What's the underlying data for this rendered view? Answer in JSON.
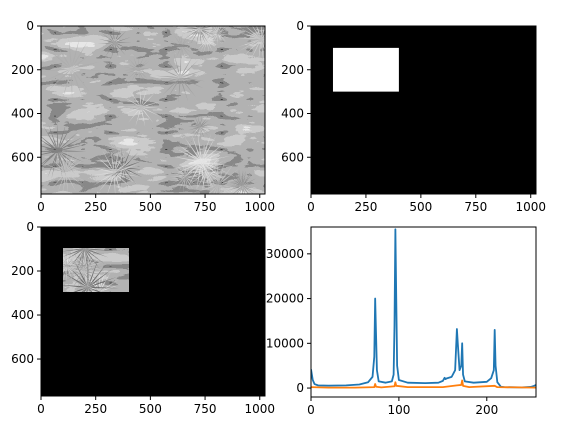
{
  "chart_data": [
    {
      "type": "heatmap",
      "panel": "top-left",
      "content": "grayscale image of spiky palm leaves",
      "xlim": [
        0,
        1024
      ],
      "ylim": [
        768,
        0
      ],
      "x_ticks": [
        0,
        250,
        500,
        750,
        1000
      ],
      "y_ticks": [
        0,
        200,
        400,
        600
      ],
      "x_tick_labels": [
        "0",
        "250",
        "500",
        "750",
        "1000"
      ],
      "y_tick_labels": [
        "0",
        "200",
        "400",
        "600"
      ]
    },
    {
      "type": "heatmap",
      "panel": "top-right",
      "content": "black mask with white rectangle",
      "xlim": [
        0,
        1024
      ],
      "ylim": [
        768,
        0
      ],
      "mask_rect": {
        "x0": 100,
        "x1": 400,
        "y0": 100,
        "y1": 300
      },
      "colors": {
        "background": "#000000",
        "mask": "#ffffff"
      },
      "x_ticks": [
        0,
        250,
        500,
        750,
        1000
      ],
      "y_ticks": [
        0,
        200,
        400,
        600
      ],
      "x_tick_labels": [
        "0",
        "250",
        "500",
        "750",
        "1000"
      ],
      "y_tick_labels": [
        "0",
        "200",
        "400",
        "600"
      ]
    },
    {
      "type": "heatmap",
      "panel": "bottom-left",
      "content": "masked image: only the rectangle region of the palm image is visible",
      "xlim": [
        0,
        1024
      ],
      "ylim": [
        768,
        0
      ],
      "mask_rect": {
        "x0": 100,
        "x1": 400,
        "y0": 100,
        "y1": 300
      },
      "x_ticks": [
        0,
        250,
        500,
        750,
        1000
      ],
      "y_ticks": [
        0,
        200,
        400,
        600
      ],
      "x_tick_labels": [
        "0",
        "250",
        "500",
        "750",
        "1000"
      ],
      "y_tick_labels": [
        "0",
        "200",
        "400",
        "600"
      ]
    },
    {
      "type": "line",
      "panel": "bottom-right",
      "xlim": [
        0,
        256
      ],
      "ylim": [
        -2000,
        36000
      ],
      "x_ticks": [
        0,
        100,
        200
      ],
      "y_ticks": [
        0,
        10000,
        20000,
        30000
      ],
      "x_tick_labels": [
        "0",
        "100",
        "200"
      ],
      "y_tick_labels": [
        "0",
        "10000",
        "20000",
        "30000"
      ],
      "grid": false,
      "series": [
        {
          "color": "#1f77b4",
          "points": [
            [
              0,
              4200
            ],
            [
              2,
              1800
            ],
            [
              4,
              900
            ],
            [
              8,
              600
            ],
            [
              20,
              550
            ],
            [
              40,
              600
            ],
            [
              55,
              800
            ],
            [
              65,
              1300
            ],
            [
              70,
              2500
            ],
            [
              72,
              7000
            ],
            [
              73,
              20000
            ],
            [
              74,
              12000
            ],
            [
              75,
              4000
            ],
            [
              77,
              1500
            ],
            [
              85,
              1200
            ],
            [
              92,
              1500
            ],
            [
              94,
              3000
            ],
            [
              95,
              14000
            ],
            [
              96,
              35500
            ],
            [
              97,
              20000
            ],
            [
              98,
              5000
            ],
            [
              100,
              1800
            ],
            [
              110,
              1200
            ],
            [
              130,
              1100
            ],
            [
              145,
              1200
            ],
            [
              150,
              1600
            ],
            [
              152,
              2300
            ],
            [
              153,
              2000
            ],
            [
              155,
              2200
            ],
            [
              160,
              2500
            ],
            [
              164,
              4000
            ],
            [
              166,
              13200
            ],
            [
              167,
              10000
            ],
            [
              169,
              4000
            ],
            [
              171,
              5000
            ],
            [
              172,
              10000
            ],
            [
              173,
              3000
            ],
            [
              175,
              1500
            ],
            [
              185,
              1200
            ],
            [
              200,
              1400
            ],
            [
              205,
              2200
            ],
            [
              208,
              4000
            ],
            [
              209,
              13000
            ],
            [
              210,
              5000
            ],
            [
              212,
              1300
            ],
            [
              216,
              300
            ],
            [
              220,
              200
            ],
            [
              240,
              150
            ],
            [
              250,
              250
            ],
            [
              254,
              500
            ],
            [
              256,
              700
            ]
          ]
        },
        {
          "color": "#ff7f0e",
          "points": [
            [
              0,
              200
            ],
            [
              20,
              100
            ],
            [
              50,
              100
            ],
            [
              72,
              200
            ],
            [
              73,
              900
            ],
            [
              74,
              300
            ],
            [
              80,
              150
            ],
            [
              95,
              400
            ],
            [
              96,
              1300
            ],
            [
              97,
              500
            ],
            [
              110,
              200
            ],
            [
              150,
              200
            ],
            [
              166,
              600
            ],
            [
              171,
              700
            ],
            [
              172,
              1700
            ],
            [
              173,
              500
            ],
            [
              180,
              200
            ],
            [
              209,
              500
            ],
            [
              212,
              200
            ],
            [
              256,
              100
            ]
          ]
        }
      ]
    }
  ]
}
